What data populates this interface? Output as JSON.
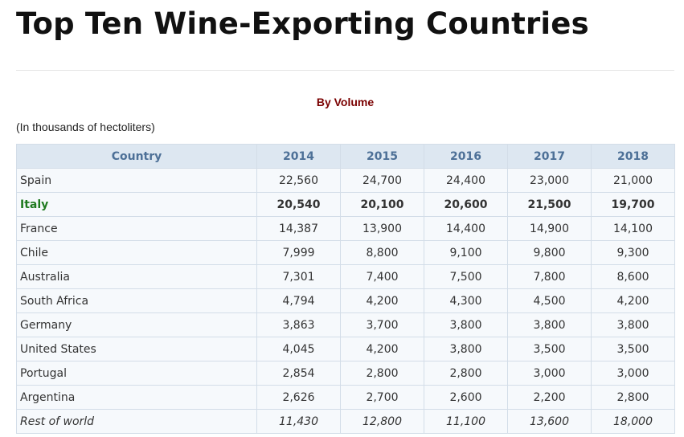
{
  "header": {
    "title": "Top Ten Wine-Exporting Countries"
  },
  "subtitle": "By Volume",
  "note": "(In thousands of hectoliters)",
  "table": {
    "columns": [
      "Country",
      "2014",
      "2015",
      "2016",
      "2017",
      "2018"
    ],
    "rows": [
      [
        "Spain",
        "22,560",
        "24,700",
        "24,400",
        "23,000",
        "21,000"
      ],
      [
        "Italy",
        "20,540",
        "20,100",
        "20,600",
        "21,500",
        "19,700"
      ],
      [
        "France",
        "14,387",
        "13,900",
        "14,400",
        "14,900",
        "14,100"
      ],
      [
        "Chile",
        "7,999",
        "8,800",
        "9,100",
        "9,800",
        "9,300"
      ],
      [
        "Australia",
        "7,301",
        "7,400",
        "7,500",
        "7,800",
        "8,600"
      ],
      [
        "South Africa",
        "4,794",
        "4,200",
        "4,300",
        "4,500",
        "4,200"
      ],
      [
        "Germany",
        "3,863",
        "3,700",
        "3,800",
        "3,800",
        "3,800"
      ],
      [
        "United States",
        "4,045",
        "4,200",
        "3,800",
        "3,500",
        "3,500"
      ],
      [
        "Portugal",
        "2,854",
        "2,800",
        "2,800",
        "3,000",
        "3,000"
      ],
      [
        "Argentina",
        "2,626",
        "2,700",
        "2,600",
        "2,200",
        "2,800"
      ],
      [
        "Rest of world",
        "11,430",
        "12,800",
        "11,100",
        "13,600",
        "18,000"
      ]
    ]
  }
}
